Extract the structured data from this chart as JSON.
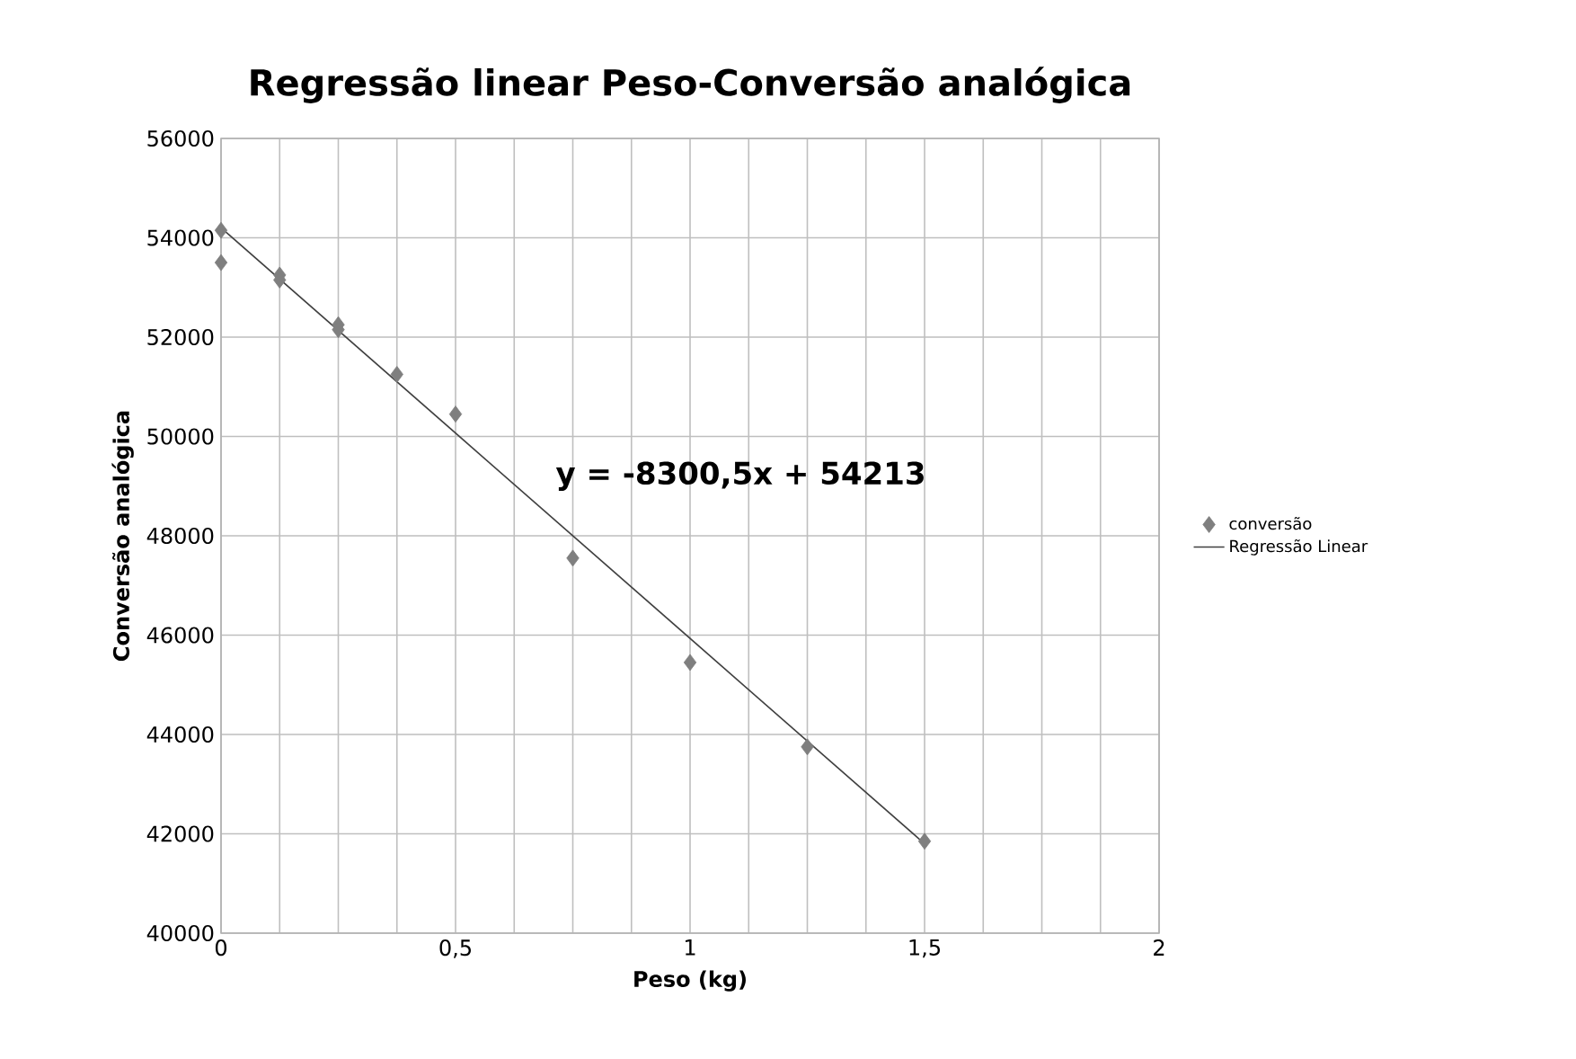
{
  "chart_data": {
    "type": "scatter",
    "title": "Regressão linear Peso-Conversão analógica",
    "xlabel": "Peso (kg)",
    "ylabel": "Conversão analógica",
    "xlim": [
      0,
      2
    ],
    "ylim": [
      40000,
      56000
    ],
    "xticks": [
      0,
      {
        "value": 0.125,
        "label": null
      },
      {
        "value": 0.25,
        "label": null
      },
      {
        "value": 0.375,
        "label": null
      },
      {
        "value": 0.5,
        "label": "0,5"
      },
      {
        "value": 0.625,
        "label": null
      },
      {
        "value": 0.75,
        "label": null
      },
      {
        "value": 0.875,
        "label": null
      },
      1,
      {
        "value": 1.125,
        "label": null
      },
      {
        "value": 1.25,
        "label": null
      },
      {
        "value": 1.375,
        "label": null
      },
      {
        "value": 1.5,
        "label": "1,5"
      },
      {
        "value": 1.625,
        "label": null
      },
      {
        "value": 1.75,
        "label": null
      },
      {
        "value": 1.875,
        "label": null
      },
      2
    ],
    "yticks": [
      40000,
      42000,
      44000,
      46000,
      48000,
      50000,
      52000,
      54000,
      56000
    ],
    "grid": true,
    "legend": "right",
    "series": [
      {
        "name": "conversão",
        "marker": "diamond",
        "color": "#7f7f7f",
        "x": [
          0,
          0,
          0.125,
          0.125,
          0.25,
          0.25,
          0.375,
          0.5,
          0.75,
          1,
          1.25,
          1.5
        ],
        "values": [
          54150,
          53500,
          53250,
          53150,
          52250,
          52150,
          51250,
          50450,
          47550,
          45450,
          43750,
          41850
        ]
      },
      {
        "name": "Regressão Linear",
        "type": "line",
        "marker": "none",
        "line_style": "solid",
        "color": "#404040",
        "x": [
          0,
          1.5
        ],
        "values": [
          54200,
          41800
        ]
      }
    ],
    "annotations": [
      "y = -8300,5x + 54213"
    ]
  }
}
